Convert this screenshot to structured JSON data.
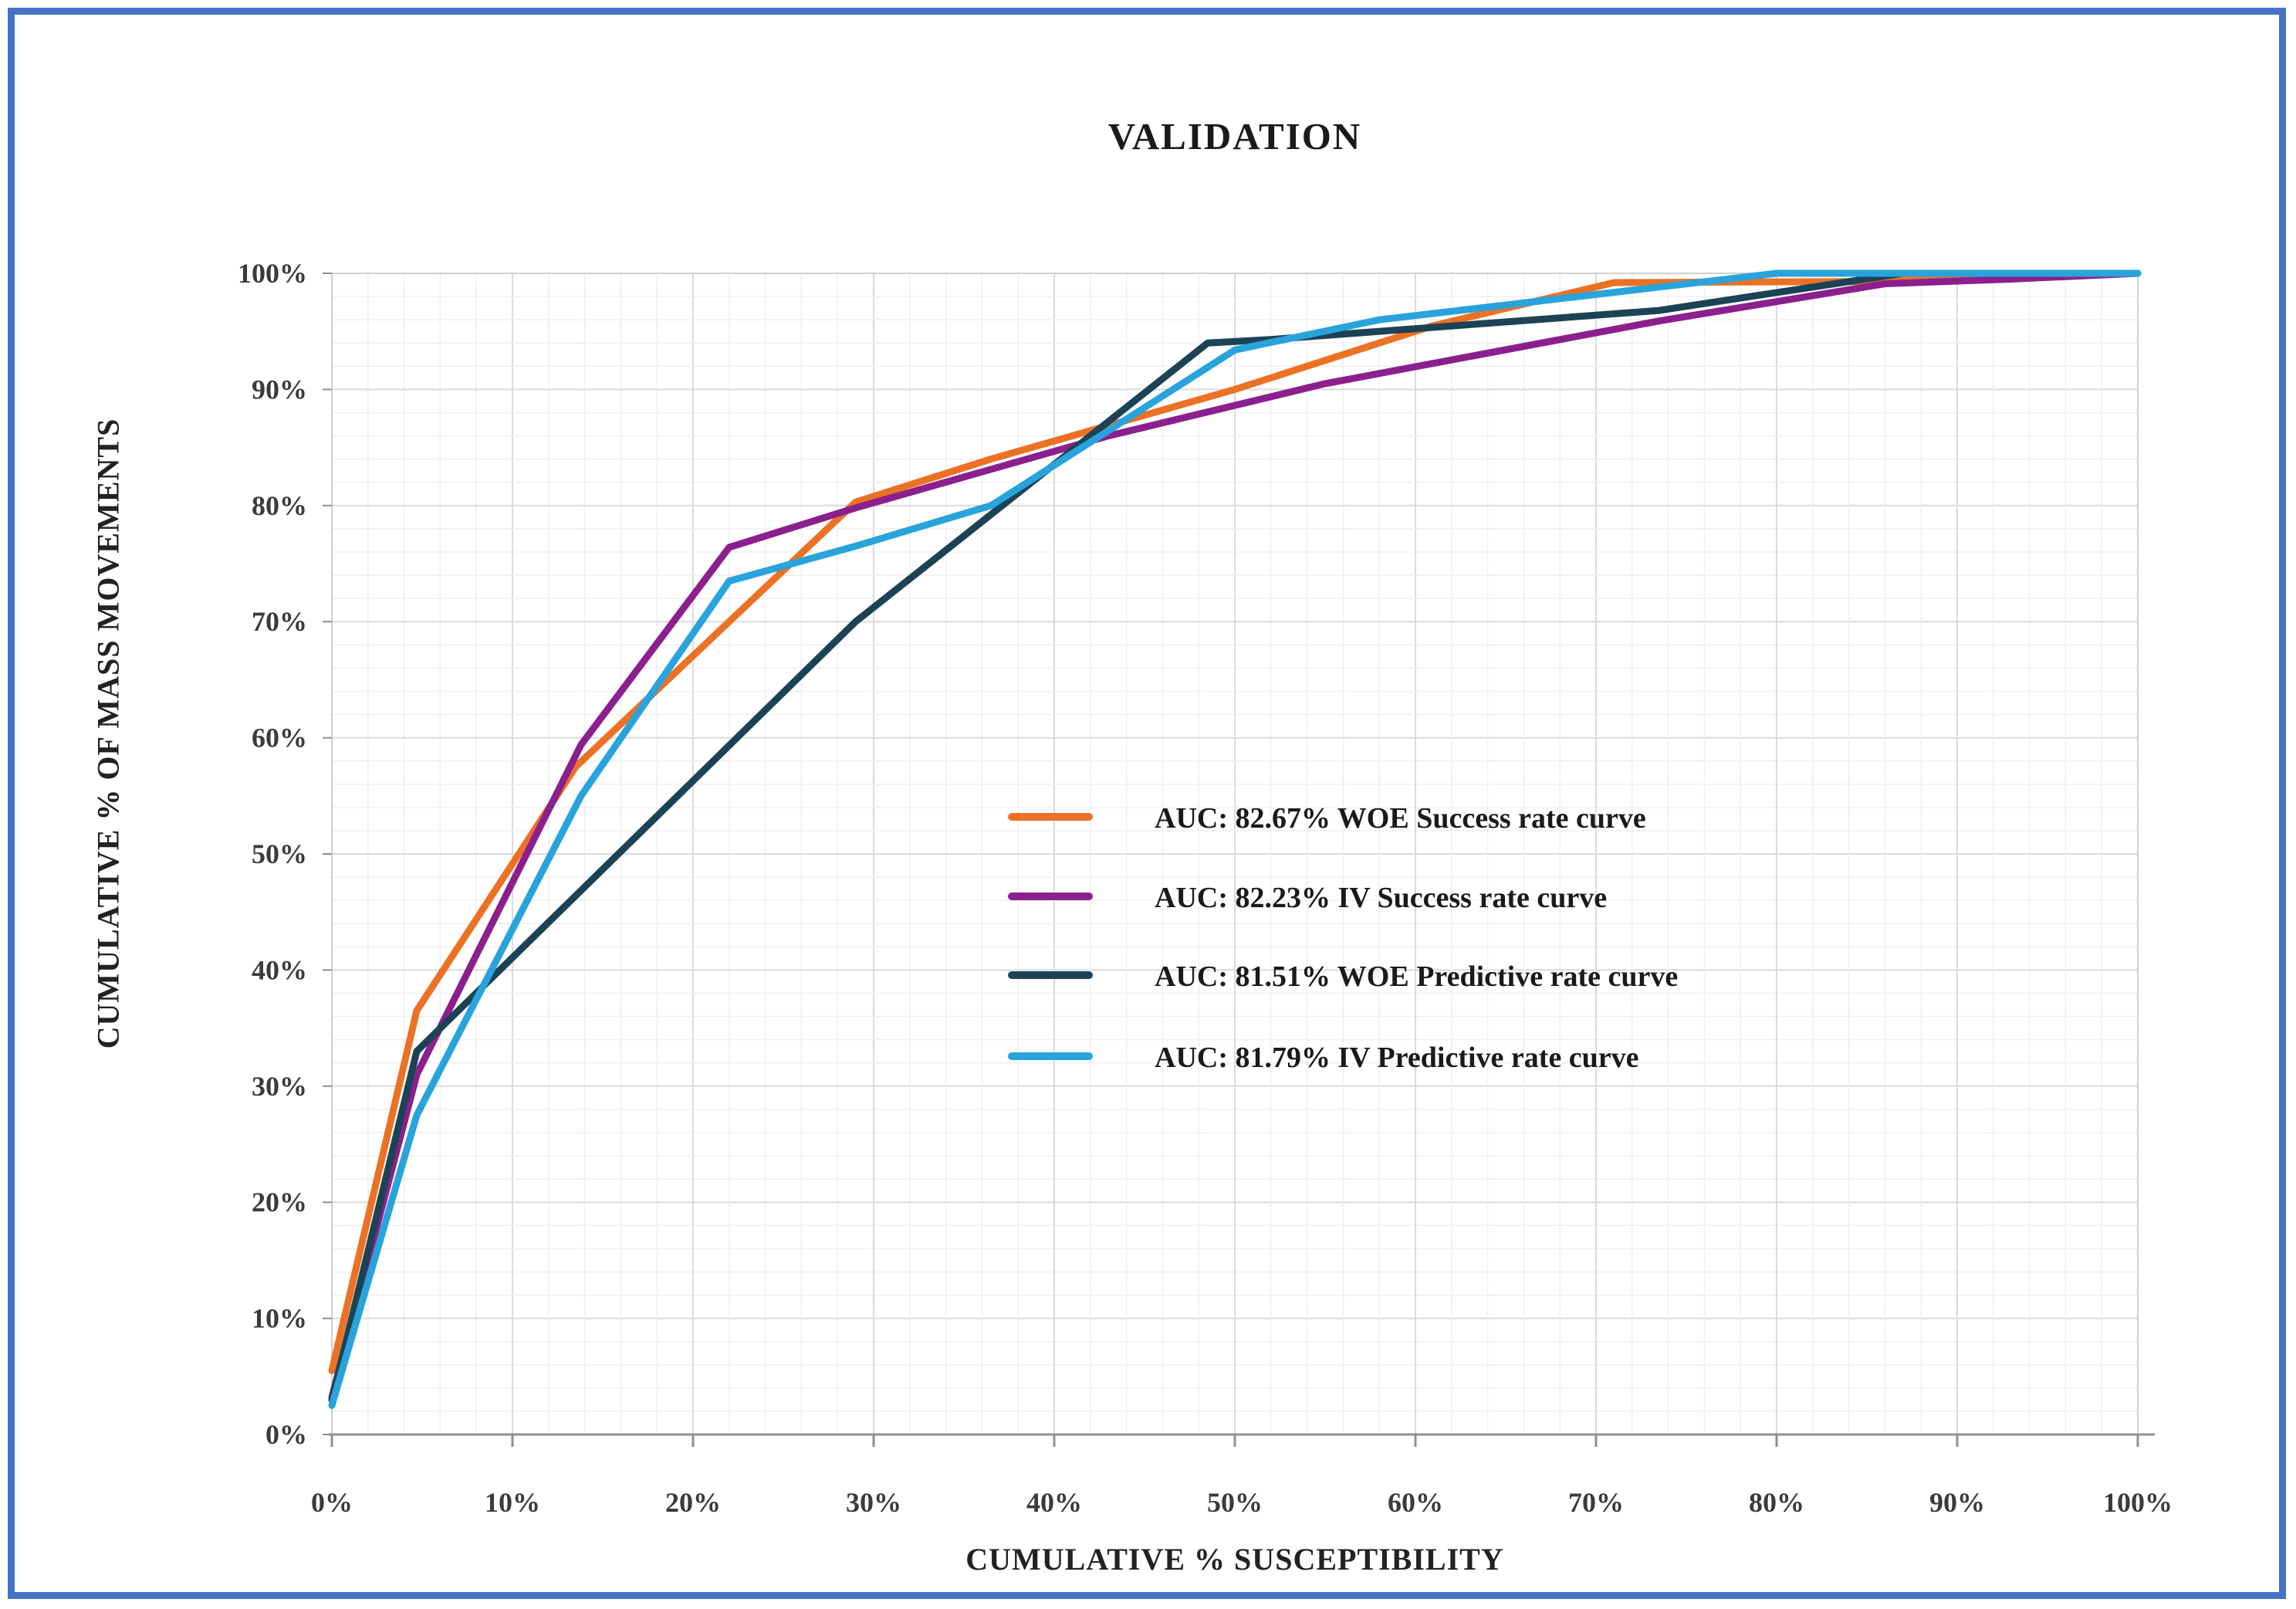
{
  "chart_data": {
    "type": "line",
    "title": "VALIDATION",
    "xlabel": "CUMULATIVE % SUSCEPTIBILITY",
    "ylabel": "CUMULATIVE % OF MASS MOVEMENTS",
    "xlim": [
      0,
      100
    ],
    "ylim": [
      0,
      100
    ],
    "x_ticks": [
      "0%",
      "10%",
      "20%",
      "30%",
      "40%",
      "50%",
      "60%",
      "70%",
      "80%",
      "90%",
      "100%"
    ],
    "y_ticks": [
      "0%",
      "10%",
      "20%",
      "30%",
      "40%",
      "50%",
      "60%",
      "70%",
      "80%",
      "90%",
      "100%"
    ],
    "grid": {
      "visible": true,
      "minor_step_pct": 2,
      "major_step_pct": 10
    },
    "legend_position": "center-right-inside",
    "series": [
      {
        "name": "AUC: 82.67%  WOE Success rate curve",
        "color": "#EC7124",
        "points": [
          [
            0,
            5.5
          ],
          [
            4.7,
            36.5
          ],
          [
            13.5,
            57.5
          ],
          [
            29,
            80.3
          ],
          [
            36.5,
            84
          ],
          [
            50,
            90
          ],
          [
            61,
            95.5
          ],
          [
            71,
            99.2
          ],
          [
            86,
            99.3
          ],
          [
            93,
            100
          ],
          [
            100,
            100
          ]
        ]
      },
      {
        "name": "AUC: 82.23% IV Success rate curve",
        "color": "#8C1F8E",
        "points": [
          [
            0,
            3.2
          ],
          [
            4.7,
            31
          ],
          [
            13.8,
            59.4
          ],
          [
            22,
            76.4
          ],
          [
            29,
            79.8
          ],
          [
            43,
            86
          ],
          [
            55,
            90.5
          ],
          [
            73.5,
            95.9
          ],
          [
            86,
            99.1
          ],
          [
            93,
            99.5
          ],
          [
            100,
            100
          ]
        ]
      },
      {
        "name": "AUC: 81.51% WOE Predictive rate curve",
        "color": "#1C4355",
        "points": [
          [
            0,
            3
          ],
          [
            4.7,
            33
          ],
          [
            29,
            70
          ],
          [
            48.5,
            94
          ],
          [
            52,
            94.3
          ],
          [
            73.5,
            96.8
          ],
          [
            87,
            100
          ],
          [
            100,
            100
          ]
        ]
      },
      {
        "name": "AUC: 81.79% IV Predictive rate curve",
        "color": "#29A3DC",
        "points": [
          [
            0,
            2.5
          ],
          [
            4.7,
            27.5
          ],
          [
            13.8,
            55
          ],
          [
            22,
            73.5
          ],
          [
            29,
            76.5
          ],
          [
            36.5,
            80
          ],
          [
            50,
            93.4
          ],
          [
            58,
            96
          ],
          [
            80,
            100
          ],
          [
            100,
            100
          ]
        ]
      }
    ],
    "colors": {
      "frame_border": "#4472C4",
      "grid_minor": "#EFEFEF",
      "grid_major": "#DBDBDB",
      "plot_border": "#D0D0D0",
      "axis_line": "#8F8F8F",
      "tick_text": "#3B3B3B",
      "background": "#FFFFFF"
    }
  }
}
